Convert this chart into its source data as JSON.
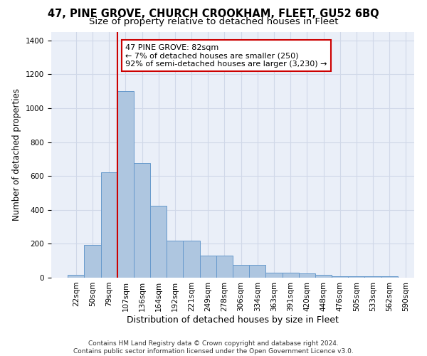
{
  "title": "47, PINE GROVE, CHURCH CROOKHAM, FLEET, GU52 6BQ",
  "subtitle": "Size of property relative to detached houses in Fleet",
  "xlabel": "Distribution of detached houses by size in Fleet",
  "ylabel": "Number of detached properties",
  "bar_values": [
    15,
    195,
    620,
    1100,
    675,
    425,
    220,
    220,
    130,
    130,
    75,
    75,
    30,
    30,
    25,
    15,
    10,
    10,
    10,
    10
  ],
  "bar_labels": [
    "22sqm",
    "50sqm",
    "79sqm",
    "107sqm",
    "136sqm",
    "164sqm",
    "192sqm",
    "221sqm",
    "249sqm",
    "278sqm",
    "306sqm",
    "334sqm",
    "363sqm",
    "391sqm",
    "420sqm",
    "448sqm",
    "476sqm",
    "505sqm",
    "533sqm",
    "562sqm",
    "590sqm"
  ],
  "bar_color": "#aec6e0",
  "bar_edge_color": "#6699cc",
  "vline_x": 2.5,
  "vline_color": "#cc0000",
  "annotation_text": "47 PINE GROVE: 82sqm\n← 7% of detached houses are smaller (250)\n92% of semi-detached houses are larger (3,230) →",
  "annotation_box_color": "#ffffff",
  "annotation_box_edge": "#cc0000",
  "ylim": [
    0,
    1450
  ],
  "yticks": [
    0,
    200,
    400,
    600,
    800,
    1000,
    1200,
    1400
  ],
  "grid_color": "#d0d8e8",
  "bg_color": "#eaeff8",
  "footer": "Contains HM Land Registry data © Crown copyright and database right 2024.\nContains public sector information licensed under the Open Government Licence v3.0.",
  "title_fontsize": 10.5,
  "subtitle_fontsize": 9.5,
  "annotation_fontsize": 8,
  "ylabel_fontsize": 8.5,
  "xlabel_fontsize": 9,
  "tick_fontsize": 7.5,
  "footer_fontsize": 6.5
}
